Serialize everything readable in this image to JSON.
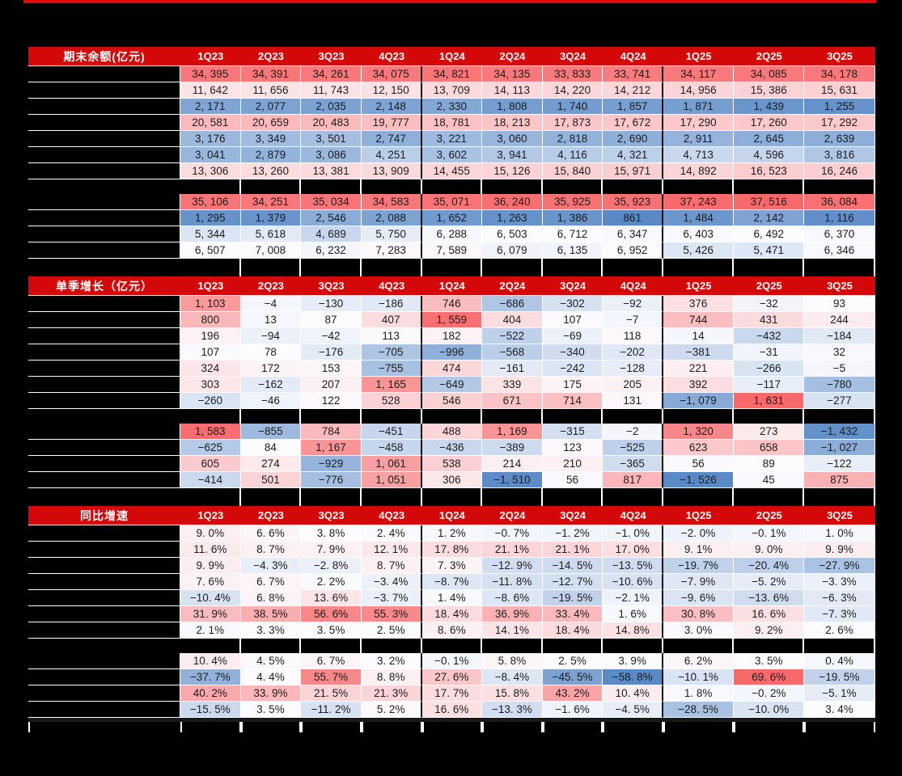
{
  "page": {
    "background": "#000000",
    "top_rule_color": "#E10A0A",
    "header_red": "#D40808",
    "cell_text_color": "#1C1C1C",
    "grid_line_color": "#FFFFFF",
    "group_divider_color": "#141414"
  },
  "heatmap_scale": {
    "min_color": "#5A8AC6",
    "mid_color": "#FCFCFF",
    "max_color": "#F8696B",
    "midpoint": "median"
  },
  "chart_data": [
    {
      "type": "heatmap",
      "title": "期末余额(亿元)",
      "unit": "亿元",
      "value_format": "integer",
      "row_labels_redacted": true,
      "group_dividers_after": [
        "4Q23",
        "4Q24"
      ],
      "columns": [
        "1Q23",
        "2Q23",
        "3Q23",
        "4Q23",
        "1Q24",
        "2Q24",
        "3Q24",
        "4Q24",
        "1Q25",
        "2Q25",
        "3Q25"
      ],
      "blocks": [
        [
          [
            34395,
            34391,
            34261,
            34075,
            34821,
            34135,
            33833,
            33741,
            34117,
            34085,
            34178
          ],
          [
            11642,
            11656,
            11743,
            12150,
            13709,
            14113,
            14220,
            14212,
            14956,
            15386,
            15631
          ],
          [
            2171,
            2077,
            2035,
            2148,
            2330,
            1808,
            1740,
            1857,
            1871,
            1439,
            1255
          ],
          [
            20581,
            20659,
            20483,
            19777,
            18781,
            18213,
            17873,
            17672,
            17290,
            17260,
            17292
          ],
          [
            3176,
            3349,
            3501,
            2747,
            3221,
            3060,
            2818,
            2690,
            2911,
            2645,
            2639
          ],
          [
            3041,
            2879,
            3086,
            4251,
            3602,
            3941,
            4116,
            4321,
            4713,
            4596,
            3816
          ],
          [
            13306,
            13260,
            13381,
            13909,
            14455,
            15126,
            15840,
            15971,
            14892,
            16523,
            16246
          ]
        ],
        [
          [
            35106,
            34251,
            35034,
            34583,
            35071,
            36240,
            35925,
            35923,
            37243,
            37516,
            36084
          ],
          [
            1295,
            1379,
            2546,
            2088,
            1652,
            1263,
            1386,
            861,
            1484,
            2142,
            1116
          ],
          [
            5344,
            5618,
            4689,
            5750,
            6288,
            6503,
            6712,
            6347,
            6403,
            6492,
            6370
          ],
          [
            6507,
            7008,
            6232,
            7283,
            7589,
            6079,
            6135,
            6952,
            5426,
            5471,
            6346
          ]
        ]
      ]
    },
    {
      "type": "heatmap",
      "title": "单季增长（亿元）",
      "unit": "亿元",
      "value_format": "integer",
      "row_labels_redacted": true,
      "group_dividers_after": [
        "4Q23",
        "4Q24"
      ],
      "columns": [
        "1Q23",
        "2Q23",
        "3Q23",
        "4Q23",
        "1Q24",
        "2Q24",
        "3Q24",
        "4Q24",
        "1Q25",
        "2Q25",
        "3Q25"
      ],
      "blocks": [
        [
          [
            1103,
            -4,
            -130,
            -186,
            746,
            -686,
            -302,
            -92,
            376,
            -32,
            93
          ],
          [
            800,
            13,
            87,
            407,
            1559,
            404,
            107,
            -7,
            744,
            431,
            244
          ],
          [
            196,
            -94,
            -42,
            113,
            182,
            -522,
            -69,
            118,
            14,
            -432,
            -184
          ],
          [
            107,
            78,
            -176,
            -705,
            -996,
            -568,
            -340,
            -202,
            -381,
            -31,
            32
          ],
          [
            324,
            172,
            153,
            -755,
            474,
            -161,
            -242,
            -128,
            221,
            -266,
            -5
          ],
          [
            303,
            -162,
            207,
            1165,
            -649,
            339,
            175,
            205,
            392,
            -117,
            -780
          ],
          [
            -260,
            -46,
            122,
            528,
            546,
            671,
            714,
            131,
            -1079,
            1631,
            -277
          ]
        ],
        [
          [
            1583,
            -855,
            784,
            -451,
            488,
            1169,
            -315,
            -2,
            1320,
            273,
            -1432
          ],
          [
            -625,
            84,
            1167,
            -458,
            -436,
            -389,
            123,
            -525,
            623,
            658,
            -1027
          ],
          [
            605,
            274,
            -929,
            1061,
            538,
            214,
            210,
            -365,
            56,
            89,
            -122
          ],
          [
            -414,
            501,
            -776,
            1051,
            306,
            -1510,
            56,
            817,
            -1526,
            45,
            875
          ]
        ]
      ]
    },
    {
      "type": "heatmap",
      "title": "同比增速",
      "unit": "%",
      "value_format": "percent",
      "row_labels_redacted": true,
      "group_dividers_after": [
        "4Q23",
        "4Q24"
      ],
      "columns": [
        "1Q23",
        "2Q23",
        "3Q23",
        "4Q23",
        "1Q24",
        "2Q24",
        "3Q24",
        "4Q24",
        "1Q25",
        "2Q25",
        "3Q25"
      ],
      "blocks": [
        [
          [
            9.0,
            6.6,
            3.8,
            2.4,
            1.2,
            -0.7,
            -1.2,
            -1.0,
            -2.0,
            -0.1,
            1.0
          ],
          [
            11.6,
            8.7,
            7.9,
            12.1,
            17.8,
            21.1,
            21.1,
            17.0,
            9.1,
            9.0,
            9.9
          ],
          [
            9.9,
            -4.3,
            -2.8,
            8.7,
            7.3,
            -12.9,
            -14.5,
            -13.5,
            -19.7,
            -20.4,
            -27.9
          ],
          [
            7.6,
            6.7,
            2.2,
            -3.4,
            -8.7,
            -11.8,
            -12.7,
            -10.6,
            -7.9,
            -5.2,
            -3.3
          ],
          [
            -10.4,
            6.8,
            13.6,
            -3.7,
            1.4,
            -8.6,
            -19.5,
            -2.1,
            -9.6,
            -13.6,
            -6.3
          ],
          [
            31.9,
            38.5,
            56.6,
            55.3,
            18.4,
            36.9,
            33.4,
            1.6,
            30.8,
            16.6,
            -7.3
          ],
          [
            2.1,
            3.3,
            3.5,
            2.5,
            8.6,
            14.1,
            18.4,
            14.8,
            3.0,
            9.2,
            2.6
          ]
        ],
        [
          [
            10.4,
            4.5,
            6.7,
            3.2,
            -0.1,
            5.8,
            2.5,
            3.9,
            6.2,
            3.5,
            0.4
          ],
          [
            -37.7,
            4.4,
            55.7,
            8.8,
            27.6,
            -8.4,
            -45.5,
            -58.8,
            -10.1,
            69.6,
            -19.5
          ],
          [
            40.2,
            33.9,
            21.5,
            21.3,
            17.7,
            15.8,
            43.2,
            10.4,
            1.8,
            -0.2,
            -5.1
          ],
          [
            -15.5,
            3.5,
            -11.2,
            5.2,
            16.6,
            -13.3,
            -1.6,
            -4.5,
            -28.5,
            -10.0,
            3.4
          ]
        ]
      ]
    }
  ]
}
